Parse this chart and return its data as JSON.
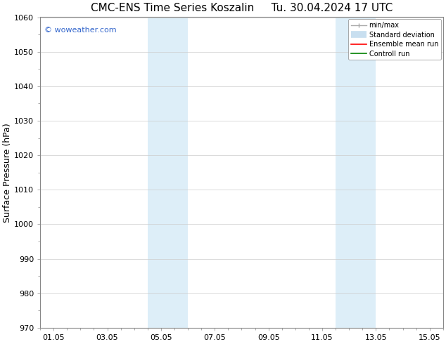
{
  "title_left": "CMC-ENS Time Series Koszalin",
  "title_right": "Tu. 30.04.2024 17 UTC",
  "ylabel": "Surface Pressure (hPa)",
  "ylim": [
    970,
    1060
  ],
  "yticks": [
    970,
    980,
    990,
    1000,
    1010,
    1020,
    1030,
    1040,
    1050,
    1060
  ],
  "xtick_labels": [
    "01.05",
    "03.05",
    "05.05",
    "07.05",
    "09.05",
    "11.05",
    "13.05",
    "15.05"
  ],
  "xtick_positions": [
    0,
    2,
    4,
    6,
    8,
    10,
    12,
    14
  ],
  "xlim": [
    -0.5,
    14.5
  ],
  "shaded_bands": [
    {
      "x_start": 3.5,
      "x_end": 5.0,
      "color": "#ddeef8"
    },
    {
      "x_start": 10.5,
      "x_end": 12.0,
      "color": "#ddeef8"
    }
  ],
  "watermark": "© woweather.com",
  "watermark_color": "#3366cc",
  "bg_color": "#ffffff",
  "grid_color": "#cccccc",
  "spine_color": "#888888",
  "tick_color": "#333333",
  "title_fontsize": 11,
  "tick_fontsize": 8,
  "label_fontsize": 9,
  "watermark_fontsize": 8,
  "legend_fontsize": 7,
  "minmax_color": "#aaaaaa",
  "std_color": "#c8dff0",
  "ensemble_color": "#ff0000",
  "control_color": "#008000"
}
